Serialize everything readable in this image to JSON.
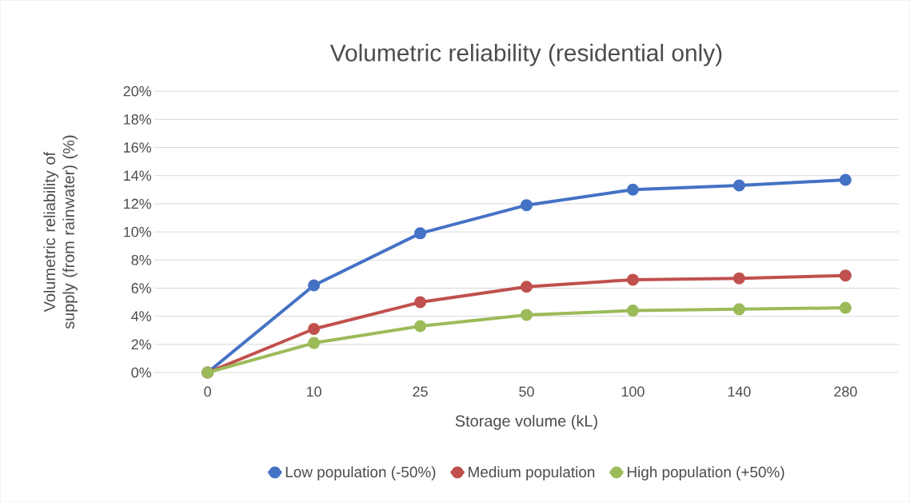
{
  "chart_data": {
    "type": "line",
    "title": "Volumetric reliability (residential only)",
    "xlabel": "Storage volume (kL)",
    "ylabel": "Volumetric reliability of supply (from rainwater) (%)",
    "categories": [
      "0",
      "10",
      "25",
      "50",
      "100",
      "140",
      "280"
    ],
    "series": [
      {
        "name": "Low population (-50%)",
        "color": "#4472c4",
        "values": [
          0,
          6.2,
          9.9,
          11.9,
          13.0,
          13.3,
          13.7
        ]
      },
      {
        "name": "Medium population",
        "color": "#c0504d",
        "values": [
          0,
          3.1,
          5.0,
          6.1,
          6.6,
          6.7,
          6.9
        ]
      },
      {
        "name": "High population (+50%)",
        "color": "#9bbb59",
        "values": [
          0,
          2.1,
          3.3,
          4.1,
          4.4,
          4.5,
          4.6
        ]
      }
    ],
    "ylim": [
      0,
      20
    ],
    "yticks": [
      {
        "value": 0,
        "label": "0%"
      },
      {
        "value": 2,
        "label": "2%"
      },
      {
        "value": 4,
        "label": "4%"
      },
      {
        "value": 6,
        "label": "6%"
      },
      {
        "value": 8,
        "label": "8%"
      },
      {
        "value": 10,
        "label": "10%"
      },
      {
        "value": 12,
        "label": "12%"
      },
      {
        "value": 14,
        "label": "14%"
      },
      {
        "value": 16,
        "label": "16%"
      },
      {
        "value": 18,
        "label": "18%"
      },
      {
        "value": 20,
        "label": "20%"
      }
    ],
    "grid": "y",
    "legend": "bottom",
    "marker": "circle",
    "line_style": "solid"
  }
}
